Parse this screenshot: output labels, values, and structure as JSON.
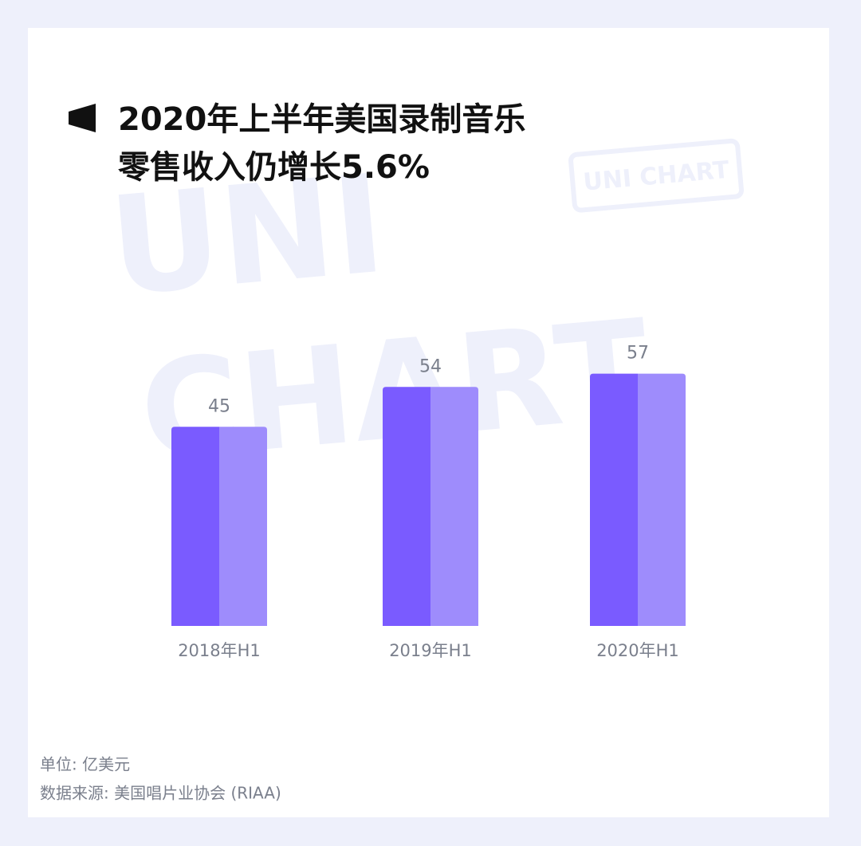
{
  "chart_data": {
    "type": "bar",
    "title": [
      "2020年上半年美国录制音乐",
      "零售收入仍增长5.6%"
    ],
    "categories": [
      "2018年H1",
      "2019年H1",
      "2020年H1"
    ],
    "values": [
      45,
      54,
      57
    ],
    "colors": [
      "#7a5bff",
      "#9e8cfc"
    ],
    "ylim": [
      0,
      60
    ],
    "unit_note": "单位: 亿美元",
    "source": "数据来源: 美国唱片业协会 (RIAA)"
  },
  "watermark": [
    "UNI",
    "CHART"
  ],
  "stamp": "UNI CHART"
}
